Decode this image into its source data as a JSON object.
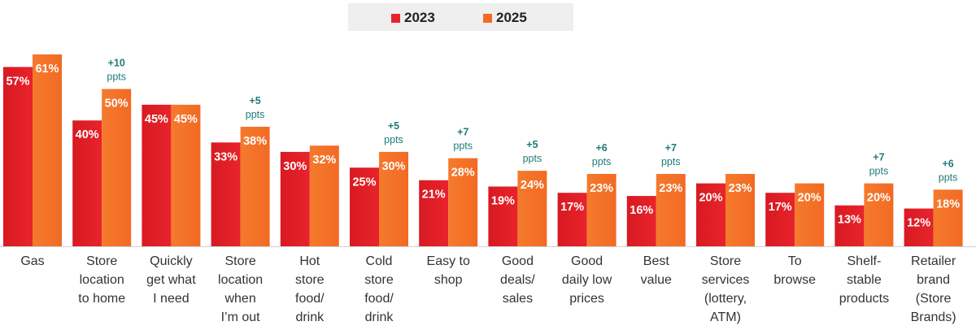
{
  "chart_data": {
    "type": "bar",
    "title": "",
    "xlabel": "",
    "ylabel": "",
    "ylim": [
      0,
      65
    ],
    "grid": false,
    "legend_position": "top-center",
    "colors": {
      "2023": "#e8232b",
      "2025": "#f26a24",
      "delta": "#1f7a7a",
      "label": "#ffffff",
      "category": "#333333"
    },
    "series": [
      {
        "name": "2023",
        "values": [
          57,
          40,
          45,
          33,
          30,
          25,
          21,
          19,
          17,
          16,
          20,
          17,
          13,
          12
        ]
      },
      {
        "name": "2025",
        "values": [
          61,
          50,
          45,
          38,
          32,
          30,
          28,
          24,
          23,
          23,
          23,
          20,
          20,
          18
        ]
      }
    ],
    "value_labels": {
      "2023": [
        "57%",
        "40%",
        "45%",
        "33%",
        "30%",
        "25%",
        "21%",
        "19%",
        "17%",
        "16%",
        "20%",
        "17%",
        "13%",
        "12%"
      ],
      "2025": [
        "61%",
        "50%",
        "45%",
        "38%",
        "32%",
        "30%",
        "28%",
        "24%",
        "23%",
        "23%",
        "23%",
        "20%",
        "20%",
        "18%"
      ]
    },
    "annotations": [
      {
        "category_index": 1,
        "lines": [
          "+10",
          "ppts"
        ]
      },
      {
        "category_index": 3,
        "lines": [
          "+5",
          "ppts"
        ]
      },
      {
        "category_index": 5,
        "lines": [
          "+5",
          "ppts"
        ]
      },
      {
        "category_index": 6,
        "lines": [
          "+7",
          "ppts"
        ]
      },
      {
        "category_index": 7,
        "lines": [
          "+5",
          "ppts"
        ]
      },
      {
        "category_index": 8,
        "lines": [
          "+6",
          "ppts"
        ]
      },
      {
        "category_index": 9,
        "lines": [
          "+7",
          "ppts"
        ]
      },
      {
        "category_index": 12,
        "lines": [
          "+7",
          "ppts"
        ]
      },
      {
        "category_index": 13,
        "lines": [
          "+6",
          "ppts"
        ]
      }
    ],
    "categories": [
      [
        "Gas"
      ],
      [
        "Store",
        "location",
        "to home"
      ],
      [
        "Quickly",
        "get what",
        "I need"
      ],
      [
        "Store",
        "location",
        "when",
        "I’m out"
      ],
      [
        "Hot",
        "store",
        "food/",
        "drink"
      ],
      [
        "Cold",
        "store",
        "food/",
        "drink"
      ],
      [
        "Easy to",
        "shop"
      ],
      [
        "Good",
        "deals/",
        "sales"
      ],
      [
        "Good",
        "daily low",
        "prices"
      ],
      [
        "Best",
        "value"
      ],
      [
        "Store",
        "services",
        "(lottery,",
        "ATM)"
      ],
      [
        "To",
        "browse"
      ],
      [
        "Shelf-",
        "stable",
        "products"
      ],
      [
        "Retailer",
        "brand",
        "(Store",
        "Brands)"
      ]
    ]
  }
}
